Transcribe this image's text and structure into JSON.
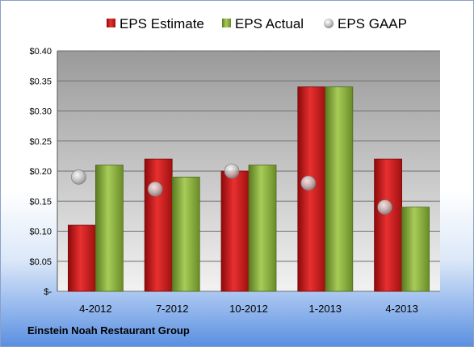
{
  "chart_data": {
    "type": "bar",
    "categories": [
      "4-2012",
      "7-2012",
      "10-2012",
      "1-2013",
      "4-2013"
    ],
    "series": [
      {
        "name": "EPS Estimate",
        "type": "bar",
        "color": "#d42020",
        "values": [
          0.11,
          0.22,
          0.2,
          0.34,
          0.22
        ]
      },
      {
        "name": "EPS Actual",
        "type": "bar",
        "color": "#8db040",
        "values": [
          0.21,
          0.19,
          0.21,
          0.34,
          0.14
        ]
      },
      {
        "name": "EPS GAAP",
        "type": "scatter",
        "color": "#b8b8b8",
        "values": [
          0.19,
          0.17,
          0.2,
          0.18,
          0.14
        ]
      }
    ],
    "yticks": [
      "$-",
      "$0.05",
      "$0.10",
      "$0.15",
      "$0.20",
      "$0.25",
      "$0.30",
      "$0.35",
      "$0.40"
    ],
    "ylim": [
      0,
      0.4
    ],
    "grid": true,
    "legend_position": "top",
    "title": "",
    "xlabel": "",
    "ylabel": ""
  },
  "footer": {
    "company": "Einstein Noah Restaurant Group"
  }
}
